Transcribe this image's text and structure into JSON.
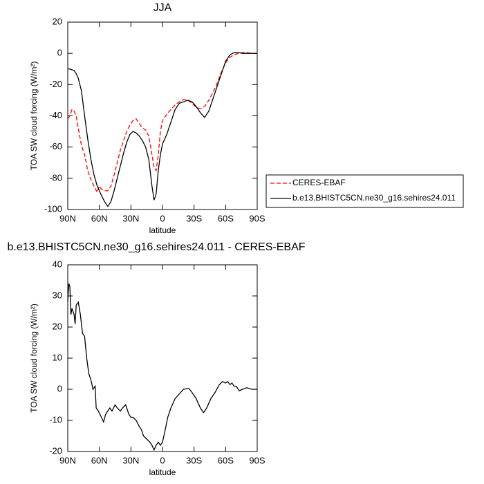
{
  "chart_data": [
    {
      "type": "line",
      "title": "JJA",
      "xlabel": "latitude",
      "ylabel": "TOA SW cloud forcing (W/m²)",
      "x": [
        90,
        88,
        86,
        84,
        82,
        80,
        77,
        74,
        71,
        68,
        65,
        62,
        60,
        58,
        55,
        52,
        49,
        46,
        43,
        40,
        37,
        34,
        31,
        28,
        25,
        22,
        19,
        16,
        13,
        10,
        8,
        6,
        4,
        2,
        0,
        -4,
        -8,
        -12,
        -16,
        -20,
        -24,
        -28,
        -32,
        -36,
        -40,
        -44,
        -48,
        -52,
        -56,
        -60,
        -64,
        -68,
        -72,
        -76,
        -80,
        -85,
        -90
      ],
      "series": [
        {
          "name": "CERES-EBAF",
          "color": "#ff0000",
          "dash": "dashed",
          "values": [
            -42,
            -40,
            -36,
            -37,
            -40,
            -48,
            -59,
            -65,
            -75,
            -81,
            -85,
            -89,
            -85,
            -87,
            -88,
            -88,
            -85,
            -78,
            -70,
            -62,
            -56,
            -50,
            -46,
            -43,
            -42,
            -45,
            -48,
            -49,
            -53,
            -65,
            -73,
            -75,
            -65,
            -50,
            -43,
            -39,
            -36,
            -33,
            -31,
            -29.5,
            -30,
            -32,
            -34.5,
            -35.5,
            -34,
            -30,
            -25,
            -19,
            -12,
            -6,
            -2.5,
            -1,
            0,
            0.5,
            0.5,
            0,
            0
          ]
        },
        {
          "name": "b.e13.BHISTC5CN.ne30_g16.sehires24.011",
          "color": "#000000",
          "dash": "solid",
          "values": [
            -10,
            -10,
            -10.5,
            -11,
            -13,
            -16,
            -24,
            -40,
            -55,
            -68,
            -78,
            -85,
            -88,
            -91,
            -95,
            -98,
            -95,
            -88,
            -80,
            -72,
            -64,
            -57,
            -52,
            -50,
            -51,
            -53,
            -56,
            -60,
            -68,
            -85,
            -94,
            -90,
            -75,
            -65,
            -58,
            -52,
            -44,
            -36,
            -32,
            -31,
            -30,
            -31,
            -34,
            -38,
            -41,
            -37,
            -29,
            -21,
            -13,
            -5,
            -1,
            0.5,
            0.5,
            0,
            0,
            0,
            0
          ]
        }
      ],
      "xlim": [
        90,
        -90
      ],
      "xticks": [
        {
          "value": 90,
          "label": "90N"
        },
        {
          "value": 60,
          "label": "60N"
        },
        {
          "value": 30,
          "label": "30N"
        },
        0,
        {
          "value": -30,
          "label": "30S"
        },
        {
          "value": -60,
          "label": "60S"
        },
        {
          "value": -90,
          "label": "90S"
        }
      ],
      "ylim": [
        -100,
        20
      ],
      "yticks": [
        -100,
        -80,
        -60,
        -40,
        -20,
        0,
        20
      ],
      "legend": "right"
    },
    {
      "type": "line",
      "title": "b.e13.BHISTC5CN.ne30_g16.sehires24.011 - CERES-EBAF",
      "xlabel": "latitude",
      "ylabel": "TOA SW cloud forcing (W/m²)",
      "x": [
        90,
        89,
        88,
        87,
        86,
        84,
        83,
        82,
        80,
        78,
        76,
        74,
        72,
        70,
        68,
        66,
        64,
        63,
        61,
        58,
        56,
        54,
        52,
        50,
        48,
        45,
        43,
        40,
        38,
        35,
        32,
        30,
        28,
        25,
        22,
        20,
        18,
        15,
        12,
        10,
        8,
        6,
        4,
        2,
        0,
        -2,
        -5,
        -8,
        -12,
        -16,
        -20,
        -25,
        -28,
        -32,
        -36,
        -39,
        -42,
        -46,
        -50,
        -54,
        -57,
        -60,
        -62,
        -64,
        -66,
        -68,
        -70,
        -73,
        -76,
        -80,
        -85,
        -90
      ],
      "values": [
        28,
        34,
        33,
        24,
        26,
        24,
        21,
        27,
        28,
        24,
        18,
        17,
        10,
        5,
        3,
        0,
        1,
        -6,
        -7,
        -9,
        -10.5,
        -8,
        -7,
        -6,
        -7,
        -5,
        -6,
        -7,
        -6,
        -5,
        -8,
        -9,
        -9,
        -10,
        -12,
        -13,
        -15,
        -16,
        -17,
        -18,
        -19.5,
        -18,
        -17,
        -18,
        -17,
        -14,
        -9,
        -6,
        -3,
        -1.5,
        0,
        0.3,
        -1,
        -3,
        -6,
        -7.5,
        -6,
        -3,
        -1,
        1.5,
        2.5,
        2,
        2.5,
        1.5,
        2,
        1,
        1,
        -0.5,
        0,
        0.5,
        0,
        0
      ],
      "color": "#000000",
      "xlim": [
        90,
        -90
      ],
      "xticks": [
        {
          "value": 90,
          "label": "90N"
        },
        {
          "value": 60,
          "label": "60N"
        },
        {
          "value": 30,
          "label": "30N"
        },
        0,
        {
          "value": -30,
          "label": "30S"
        },
        {
          "value": -60,
          "label": "60S"
        },
        {
          "value": -90,
          "label": "90S"
        }
      ],
      "ylim": [
        -20,
        40
      ],
      "yticks": [
        -20,
        -10,
        0,
        10,
        20,
        30,
        40
      ]
    }
  ]
}
